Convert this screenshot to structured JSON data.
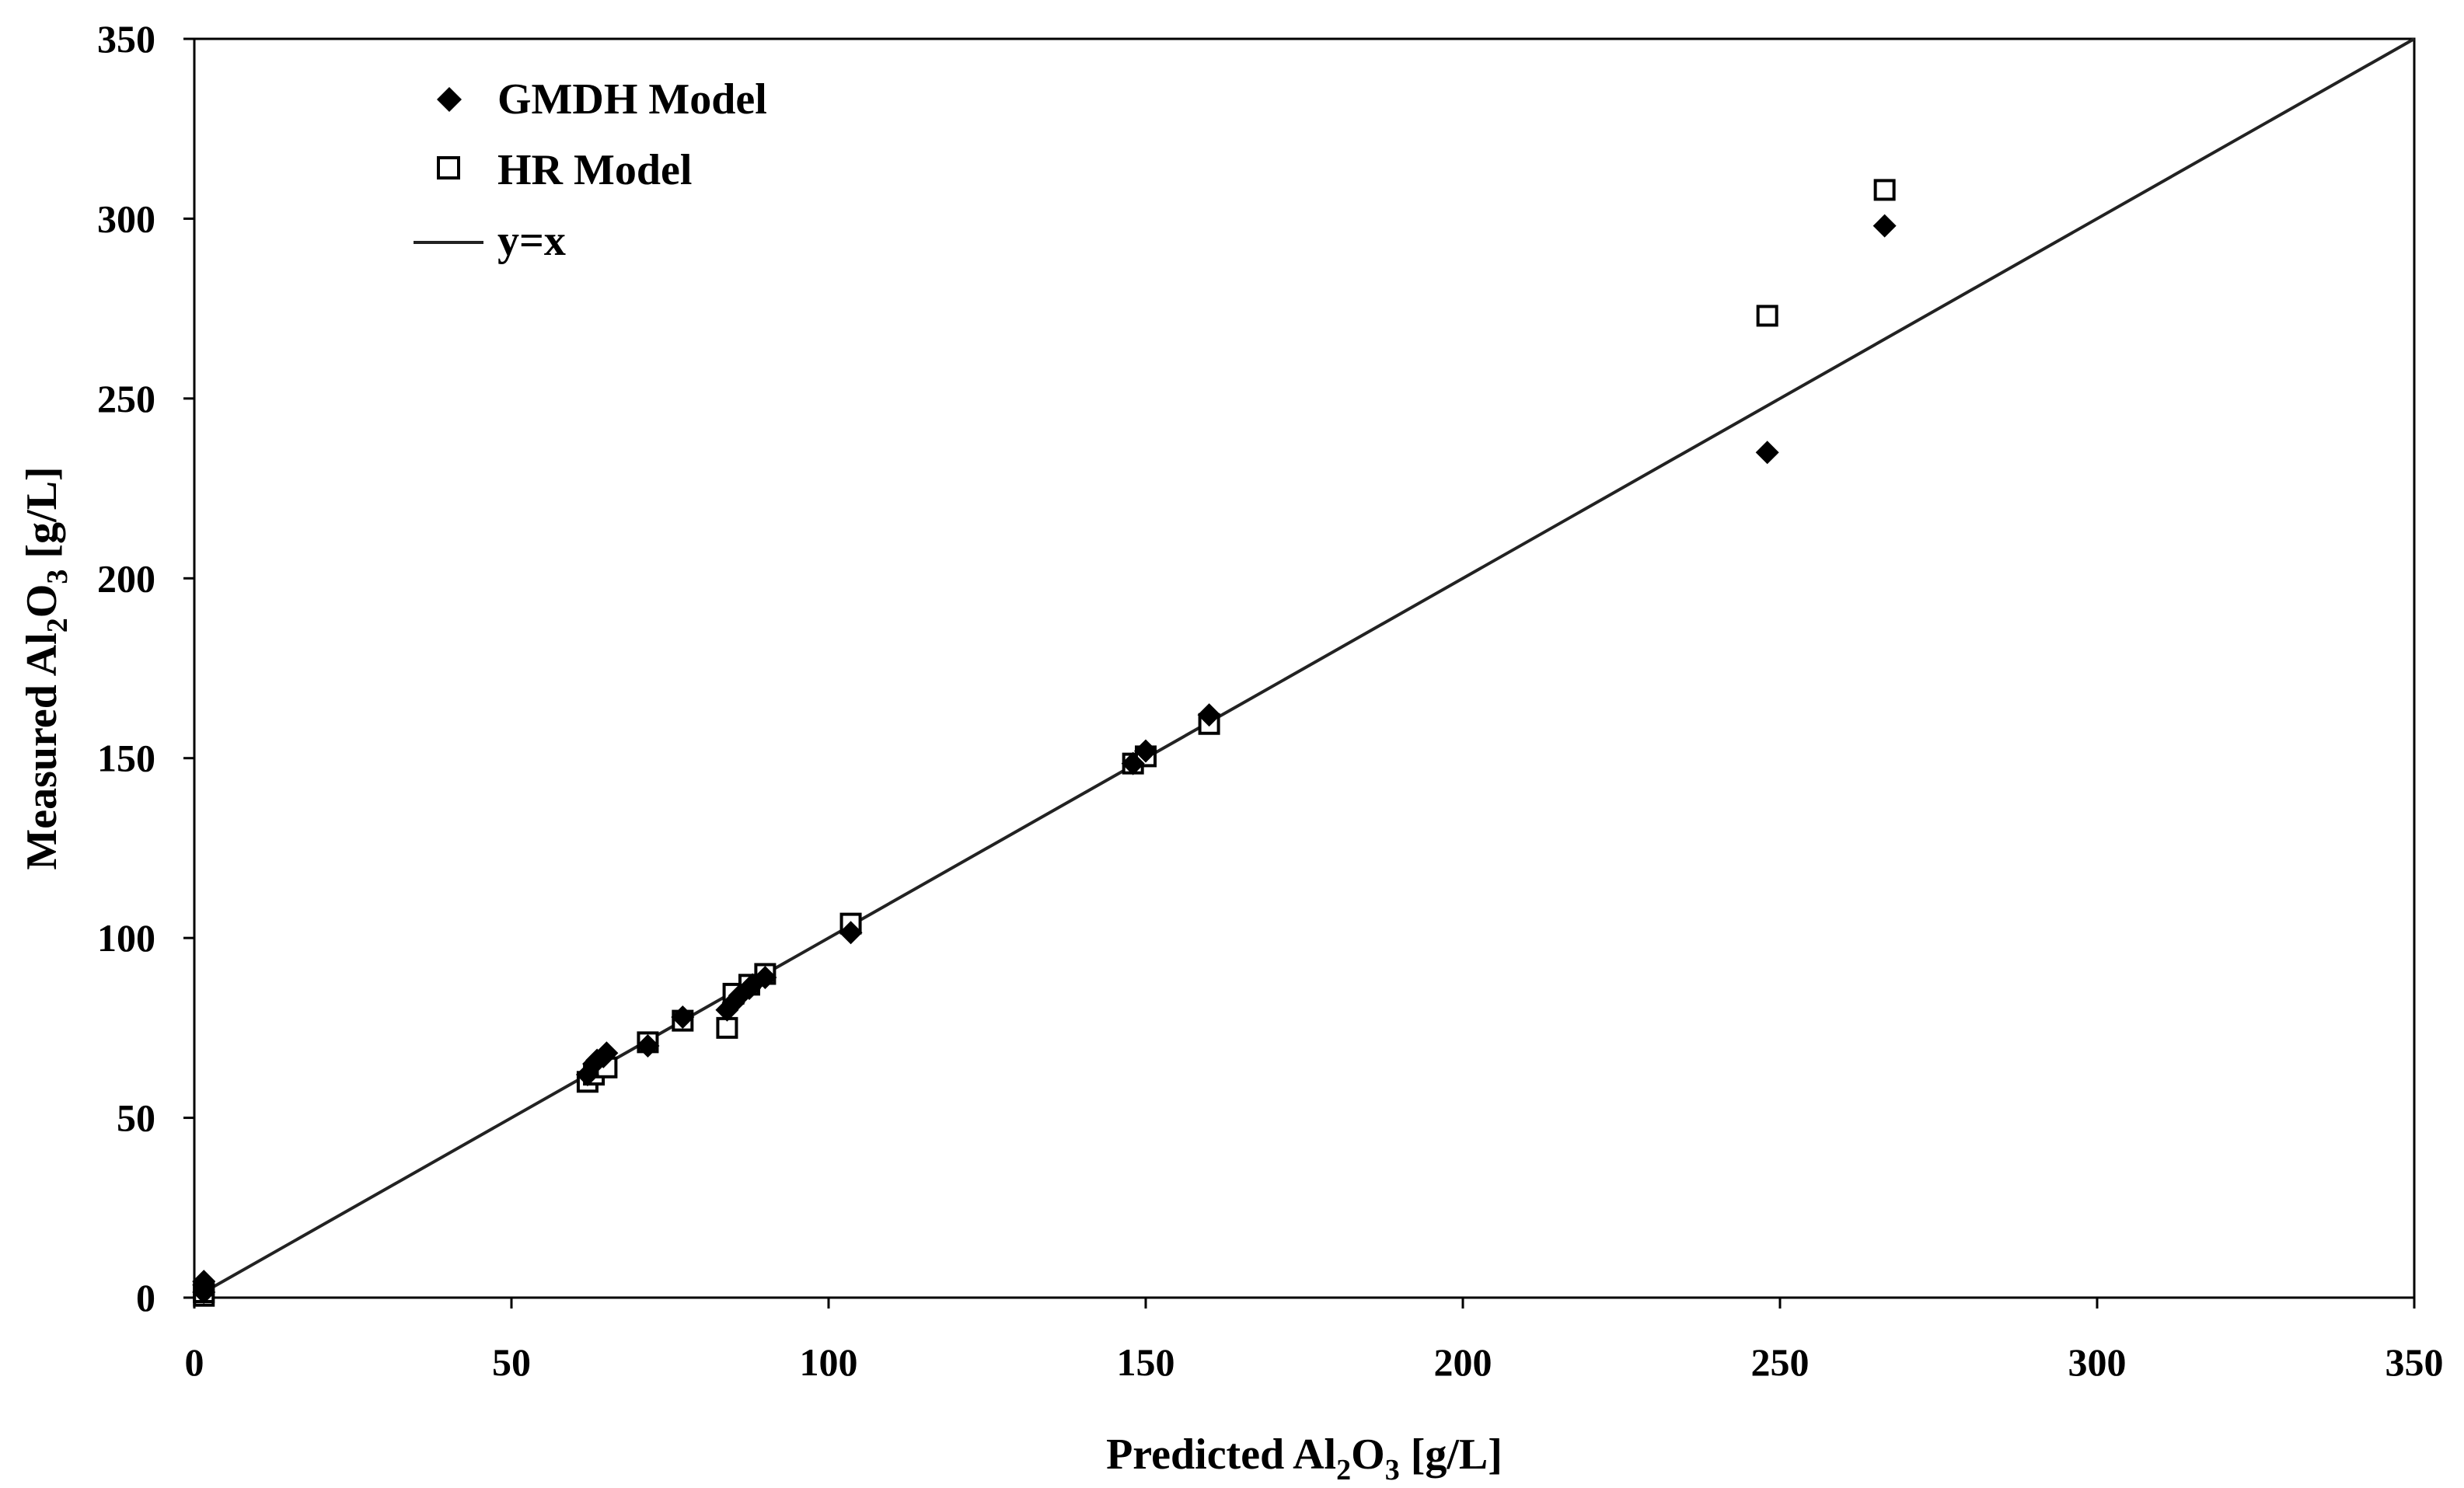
{
  "chart_data": {
    "type": "scatter",
    "xlabel": {
      "pre": "Predicted Al",
      "sub": "2",
      "mid": "O",
      "sub2": "3",
      "post": " [g/L]"
    },
    "ylabel": {
      "pre": "Measured Al",
      "sub": "2",
      "mid": "O",
      "sub2": "3",
      "post": " [g/L]"
    },
    "xlim": [
      0,
      350
    ],
    "ylim": [
      0,
      350
    ],
    "xticks": [
      0,
      50,
      100,
      150,
      200,
      250,
      300,
      350
    ],
    "yticks": [
      0,
      50,
      100,
      150,
      200,
      250,
      300,
      350
    ],
    "xtick_labels": [
      "0",
      "50",
      "100",
      "150",
      "200",
      "250",
      "300",
      "350"
    ],
    "ytick_labels": [
      "0",
      "50",
      "100",
      "150",
      "200",
      "250",
      "300",
      "350"
    ],
    "grid": false,
    "legend_position": "top-left",
    "series": [
      {
        "name": "GMDH Model",
        "marker": "filled-diamond",
        "color": "#000000",
        "points": [
          [
            1.5,
            3.5
          ],
          [
            1.5,
            4.5
          ],
          [
            1.5,
            1.5
          ],
          [
            62,
            62
          ],
          [
            63,
            65
          ],
          [
            63.5,
            66
          ],
          [
            64.5,
            67
          ],
          [
            65,
            68
          ],
          [
            71.5,
            70
          ],
          [
            77,
            78
          ],
          [
            84,
            80
          ],
          [
            85,
            82
          ],
          [
            86,
            84
          ],
          [
            87.5,
            86
          ],
          [
            88,
            87
          ],
          [
            90,
            89
          ],
          [
            103.5,
            101.5
          ],
          [
            148,
            148.5
          ],
          [
            150,
            152
          ],
          [
            160,
            162
          ],
          [
            248,
            235
          ],
          [
            266.5,
            298
          ]
        ]
      },
      {
        "name": "HR Model",
        "marker": "hollow-square",
        "color": "#000000",
        "points": [
          [
            1.5,
            0.5
          ],
          [
            1.5,
            1.5
          ],
          [
            62,
            60
          ],
          [
            63,
            62
          ],
          [
            65,
            64
          ],
          [
            71.5,
            71
          ],
          [
            77,
            77
          ],
          [
            84,
            75
          ],
          [
            85,
            84.5
          ],
          [
            87.5,
            87
          ],
          [
            90,
            90
          ],
          [
            103.5,
            104
          ],
          [
            148,
            148.5
          ],
          [
            150,
            150.5
          ],
          [
            160,
            159.5
          ],
          [
            248,
            273
          ],
          [
            266.5,
            308
          ]
        ]
      },
      {
        "name": "y=x",
        "marker": "line",
        "color": "#000000",
        "line": [
          [
            0,
            0
          ],
          [
            350,
            350
          ]
        ]
      }
    ]
  }
}
